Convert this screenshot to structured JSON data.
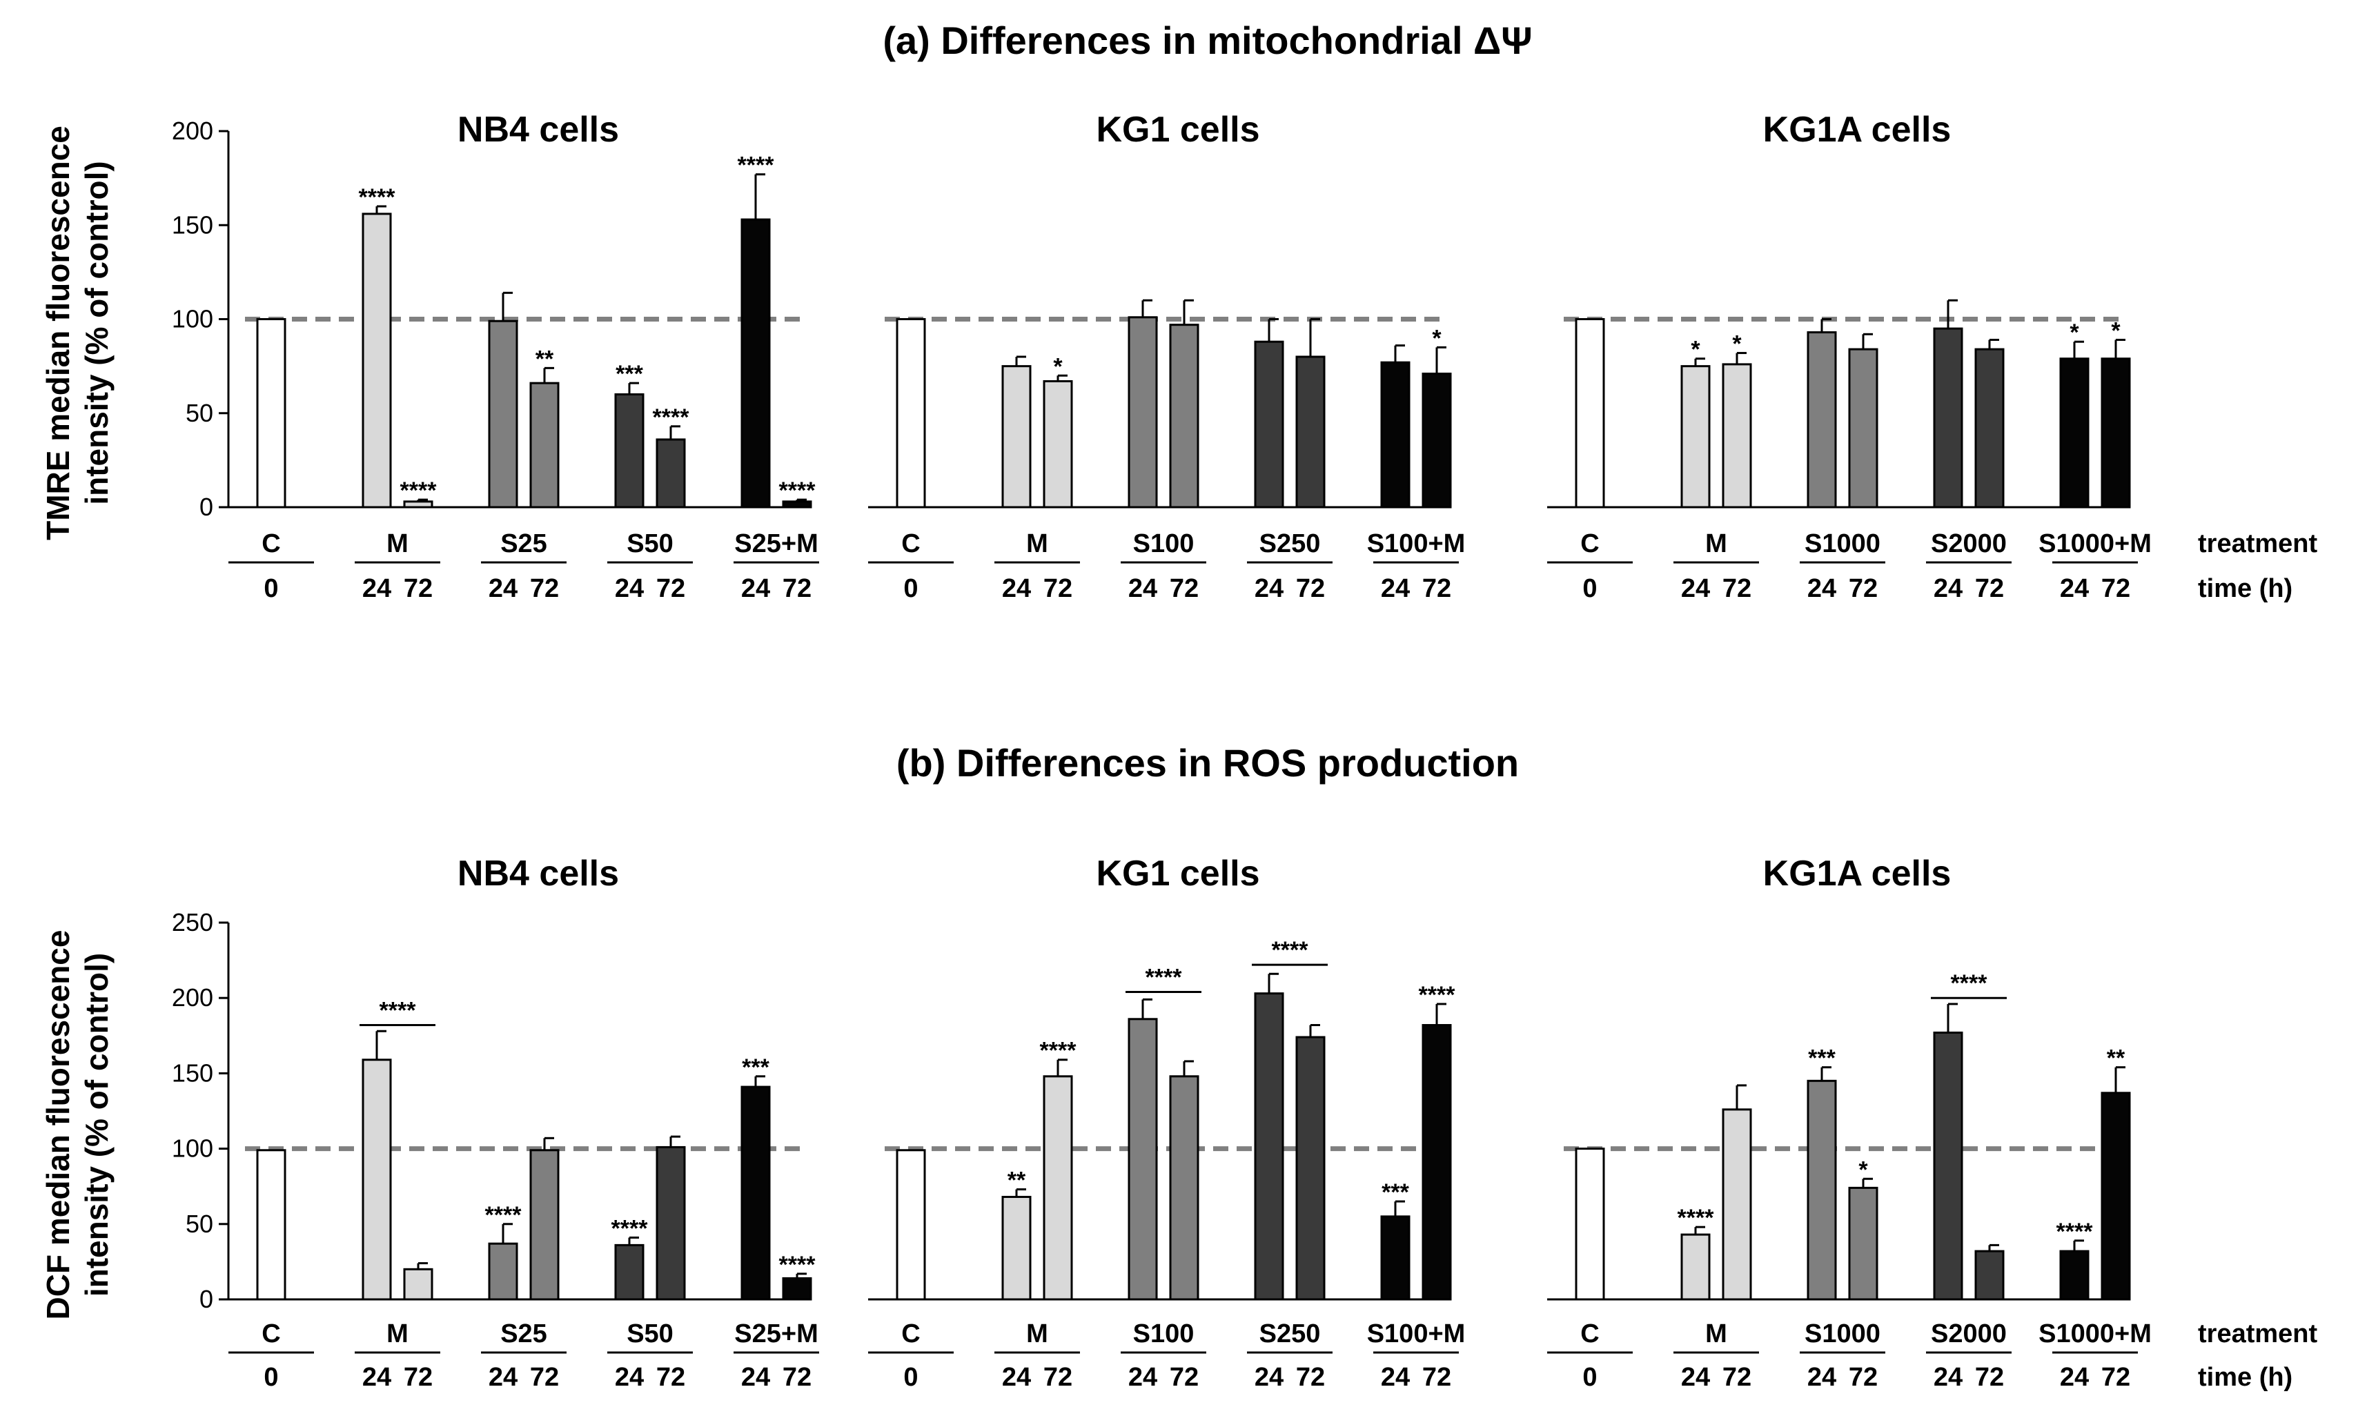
{
  "section_a": {
    "title": "(a) Differences in mitochondrial ΔΨ"
  },
  "section_b": {
    "title": "(b) Differences in ROS production"
  },
  "row_labels": {
    "treatment": "treatment",
    "time": "time (h)"
  },
  "colors": {
    "C": "#ffffff",
    "M": "#d9d9d9",
    "S_low": "#7f7f7f",
    "S_high": "#3a3a3a",
    "combo": "#050505",
    "dashed_line": "#808080"
  },
  "chart_data": [
    {
      "type": "bar",
      "row": 0,
      "col": 0,
      "title": "NB4 cells",
      "ylabel": "TMRE median fluorescence intensity (% of control)",
      "ylim": [
        0,
        200
      ],
      "yticks": [
        0,
        50,
        100,
        150,
        200
      ],
      "reference_line": 100,
      "groups": [
        {
          "label": "C",
          "times": [
            "0"
          ]
        },
        {
          "label": "M",
          "times": [
            "24",
            "72"
          ]
        },
        {
          "label": "S25",
          "times": [
            "24",
            "72"
          ]
        },
        {
          "label": "S50",
          "times": [
            "24",
            "72"
          ]
        },
        {
          "label": "S25+M",
          "times": [
            "24",
            "72"
          ]
        }
      ],
      "bars": [
        {
          "group": 0,
          "value": 100,
          "error": 0,
          "sig": "",
          "color": "C"
        },
        {
          "group": 1,
          "value": 156,
          "error": 4,
          "sig": "****",
          "color": "M"
        },
        {
          "group": 1,
          "value": 3,
          "error": 1,
          "sig": "****",
          "color": "M"
        },
        {
          "group": 2,
          "value": 99,
          "error": 15,
          "sig": "",
          "color": "S_low"
        },
        {
          "group": 2,
          "value": 66,
          "error": 8,
          "sig": "**",
          "color": "S_low"
        },
        {
          "group": 3,
          "value": 60,
          "error": 6,
          "sig": "***",
          "color": "S_high"
        },
        {
          "group": 3,
          "value": 36,
          "error": 7,
          "sig": "****",
          "color": "S_high"
        },
        {
          "group": 4,
          "value": 153,
          "error": 24,
          "sig": "****",
          "color": "combo"
        },
        {
          "group": 4,
          "value": 3,
          "error": 1,
          "sig": "****",
          "color": "combo"
        }
      ],
      "brackets": []
    },
    {
      "type": "bar",
      "row": 0,
      "col": 1,
      "title": "KG1 cells",
      "ylabel": "",
      "ylim": [
        0,
        200
      ],
      "yticks": [],
      "reference_line": 100,
      "groups": [
        {
          "label": "C",
          "times": [
            "0"
          ]
        },
        {
          "label": "M",
          "times": [
            "24",
            "72"
          ]
        },
        {
          "label": "S100",
          "times": [
            "24",
            "72"
          ]
        },
        {
          "label": "S250",
          "times": [
            "24",
            "72"
          ]
        },
        {
          "label": "S100+M",
          "times": [
            "24",
            "72"
          ]
        }
      ],
      "bars": [
        {
          "group": 0,
          "value": 100,
          "error": 0,
          "sig": "",
          "color": "C"
        },
        {
          "group": 1,
          "value": 75,
          "error": 5,
          "sig": "",
          "color": "M"
        },
        {
          "group": 1,
          "value": 67,
          "error": 3,
          "sig": "*",
          "color": "M"
        },
        {
          "group": 2,
          "value": 101,
          "error": 9,
          "sig": "",
          "color": "S_low"
        },
        {
          "group": 2,
          "value": 97,
          "error": 13,
          "sig": "",
          "color": "S_low"
        },
        {
          "group": 3,
          "value": 88,
          "error": 12,
          "sig": "",
          "color": "S_high"
        },
        {
          "group": 3,
          "value": 80,
          "error": 20,
          "sig": "",
          "color": "S_high"
        },
        {
          "group": 4,
          "value": 77,
          "error": 9,
          "sig": "",
          "color": "combo"
        },
        {
          "group": 4,
          "value": 71,
          "error": 14,
          "sig": "*",
          "color": "combo"
        }
      ],
      "brackets": []
    },
    {
      "type": "bar",
      "row": 0,
      "col": 2,
      "title": "KG1A cells",
      "ylabel": "",
      "ylim": [
        0,
        200
      ],
      "yticks": [],
      "reference_line": 100,
      "groups": [
        {
          "label": "C",
          "times": [
            "0"
          ]
        },
        {
          "label": "M",
          "times": [
            "24",
            "72"
          ]
        },
        {
          "label": "S1000",
          "times": [
            "24",
            "72"
          ]
        },
        {
          "label": "S2000",
          "times": [
            "24",
            "72"
          ]
        },
        {
          "label": "S1000+M",
          "times": [
            "24",
            "72"
          ]
        }
      ],
      "bars": [
        {
          "group": 0,
          "value": 100,
          "error": 0,
          "sig": "",
          "color": "C"
        },
        {
          "group": 1,
          "value": 75,
          "error": 4,
          "sig": "*",
          "color": "M"
        },
        {
          "group": 1,
          "value": 76,
          "error": 6,
          "sig": "*",
          "color": "M"
        },
        {
          "group": 2,
          "value": 93,
          "error": 7,
          "sig": "",
          "color": "S_low"
        },
        {
          "group": 2,
          "value": 84,
          "error": 8,
          "sig": "",
          "color": "S_low"
        },
        {
          "group": 3,
          "value": 95,
          "error": 15,
          "sig": "",
          "color": "S_high"
        },
        {
          "group": 3,
          "value": 84,
          "error": 5,
          "sig": "",
          "color": "S_high"
        },
        {
          "group": 4,
          "value": 79,
          "error": 9,
          "sig": "*",
          "color": "combo"
        },
        {
          "group": 4,
          "value": 79,
          "error": 10,
          "sig": "*",
          "color": "combo"
        }
      ],
      "brackets": []
    },
    {
      "type": "bar",
      "row": 1,
      "col": 0,
      "title": "NB4 cells",
      "ylabel": "DCF median fluorescence intensity (% of control)",
      "ylim": [
        0,
        250
      ],
      "yticks": [
        0,
        50,
        100,
        150,
        200,
        250
      ],
      "reference_line": 100,
      "groups": [
        {
          "label": "C",
          "times": [
            "0"
          ]
        },
        {
          "label": "M",
          "times": [
            "24",
            "72"
          ]
        },
        {
          "label": "S25",
          "times": [
            "24",
            "72"
          ]
        },
        {
          "label": "S50",
          "times": [
            "24",
            "72"
          ]
        },
        {
          "label": "S25+M",
          "times": [
            "24",
            "72"
          ]
        }
      ],
      "bars": [
        {
          "group": 0,
          "value": 99,
          "error": 0,
          "sig": "",
          "color": "C"
        },
        {
          "group": 1,
          "value": 159,
          "error": 19,
          "sig": "",
          "color": "M"
        },
        {
          "group": 1,
          "value": 20,
          "error": 4,
          "sig": "",
          "color": "M"
        },
        {
          "group": 2,
          "value": 37,
          "error": 13,
          "sig": "****",
          "color": "S_low"
        },
        {
          "group": 2,
          "value": 99,
          "error": 8,
          "sig": "",
          "color": "S_low"
        },
        {
          "group": 3,
          "value": 36,
          "error": 5,
          "sig": "****",
          "color": "S_high"
        },
        {
          "group": 3,
          "value": 101,
          "error": 7,
          "sig": "",
          "color": "S_high"
        },
        {
          "group": 4,
          "value": 141,
          "error": 7,
          "sig": "***",
          "color": "combo"
        },
        {
          "group": 4,
          "value": 14,
          "error": 3,
          "sig": "****",
          "color": "combo"
        }
      ],
      "brackets": [
        {
          "group": 1,
          "value": 182,
          "sig": "****"
        }
      ]
    },
    {
      "type": "bar",
      "row": 1,
      "col": 1,
      "title": "KG1 cells",
      "ylabel": "",
      "ylim": [
        0,
        250
      ],
      "yticks": [],
      "reference_line": 100,
      "groups": [
        {
          "label": "C",
          "times": [
            "0"
          ]
        },
        {
          "label": "M",
          "times": [
            "24",
            "72"
          ]
        },
        {
          "label": "S100",
          "times": [
            "24",
            "72"
          ]
        },
        {
          "label": "S250",
          "times": [
            "24",
            "72"
          ]
        },
        {
          "label": "S100+M",
          "times": [
            "24",
            "72"
          ]
        }
      ],
      "bars": [
        {
          "group": 0,
          "value": 99,
          "error": 0,
          "sig": "",
          "color": "C"
        },
        {
          "group": 1,
          "value": 68,
          "error": 5,
          "sig": "**",
          "color": "M"
        },
        {
          "group": 1,
          "value": 148,
          "error": 11,
          "sig": "****",
          "color": "M"
        },
        {
          "group": 2,
          "value": 186,
          "error": 13,
          "sig": "",
          "color": "S_low"
        },
        {
          "group": 2,
          "value": 148,
          "error": 10,
          "sig": "",
          "color": "S_low"
        },
        {
          "group": 3,
          "value": 203,
          "error": 13,
          "sig": "",
          "color": "S_high"
        },
        {
          "group": 3,
          "value": 174,
          "error": 8,
          "sig": "",
          "color": "S_high"
        },
        {
          "group": 4,
          "value": 55,
          "error": 10,
          "sig": "***",
          "color": "combo"
        },
        {
          "group": 4,
          "value": 182,
          "error": 14,
          "sig": "****",
          "color": "combo"
        }
      ],
      "brackets": [
        {
          "group": 2,
          "value": 204,
          "sig": "****"
        },
        {
          "group": 3,
          "value": 222,
          "sig": "****"
        }
      ]
    },
    {
      "type": "bar",
      "row": 1,
      "col": 2,
      "title": "KG1A cells",
      "ylabel": "",
      "ylim": [
        0,
        250
      ],
      "yticks": [],
      "reference_line": 100,
      "groups": [
        {
          "label": "C",
          "times": [
            "0"
          ]
        },
        {
          "label": "M",
          "times": [
            "24",
            "72"
          ]
        },
        {
          "label": "S1000",
          "times": [
            "24",
            "72"
          ]
        },
        {
          "label": "S2000",
          "times": [
            "24",
            "72"
          ]
        },
        {
          "label": "S1000+M",
          "times": [
            "24",
            "72"
          ]
        }
      ],
      "bars": [
        {
          "group": 0,
          "value": 100,
          "error": 0,
          "sig": "",
          "color": "C"
        },
        {
          "group": 1,
          "value": 43,
          "error": 5,
          "sig": "****",
          "color": "M"
        },
        {
          "group": 1,
          "value": 126,
          "error": 16,
          "sig": "",
          "color": "M"
        },
        {
          "group": 2,
          "value": 145,
          "error": 9,
          "sig": "***",
          "color": "S_low"
        },
        {
          "group": 2,
          "value": 74,
          "error": 6,
          "sig": "*",
          "color": "S_low"
        },
        {
          "group": 3,
          "value": 177,
          "error": 19,
          "sig": "",
          "color": "S_high"
        },
        {
          "group": 3,
          "value": 32,
          "error": 4,
          "sig": "",
          "color": "S_high"
        },
        {
          "group": 4,
          "value": 32,
          "error": 7,
          "sig": "****",
          "color": "combo"
        },
        {
          "group": 4,
          "value": 137,
          "error": 17,
          "sig": "**",
          "color": "combo"
        }
      ],
      "brackets": [
        {
          "group": 3,
          "value": 200,
          "sig": "****"
        }
      ]
    }
  ]
}
